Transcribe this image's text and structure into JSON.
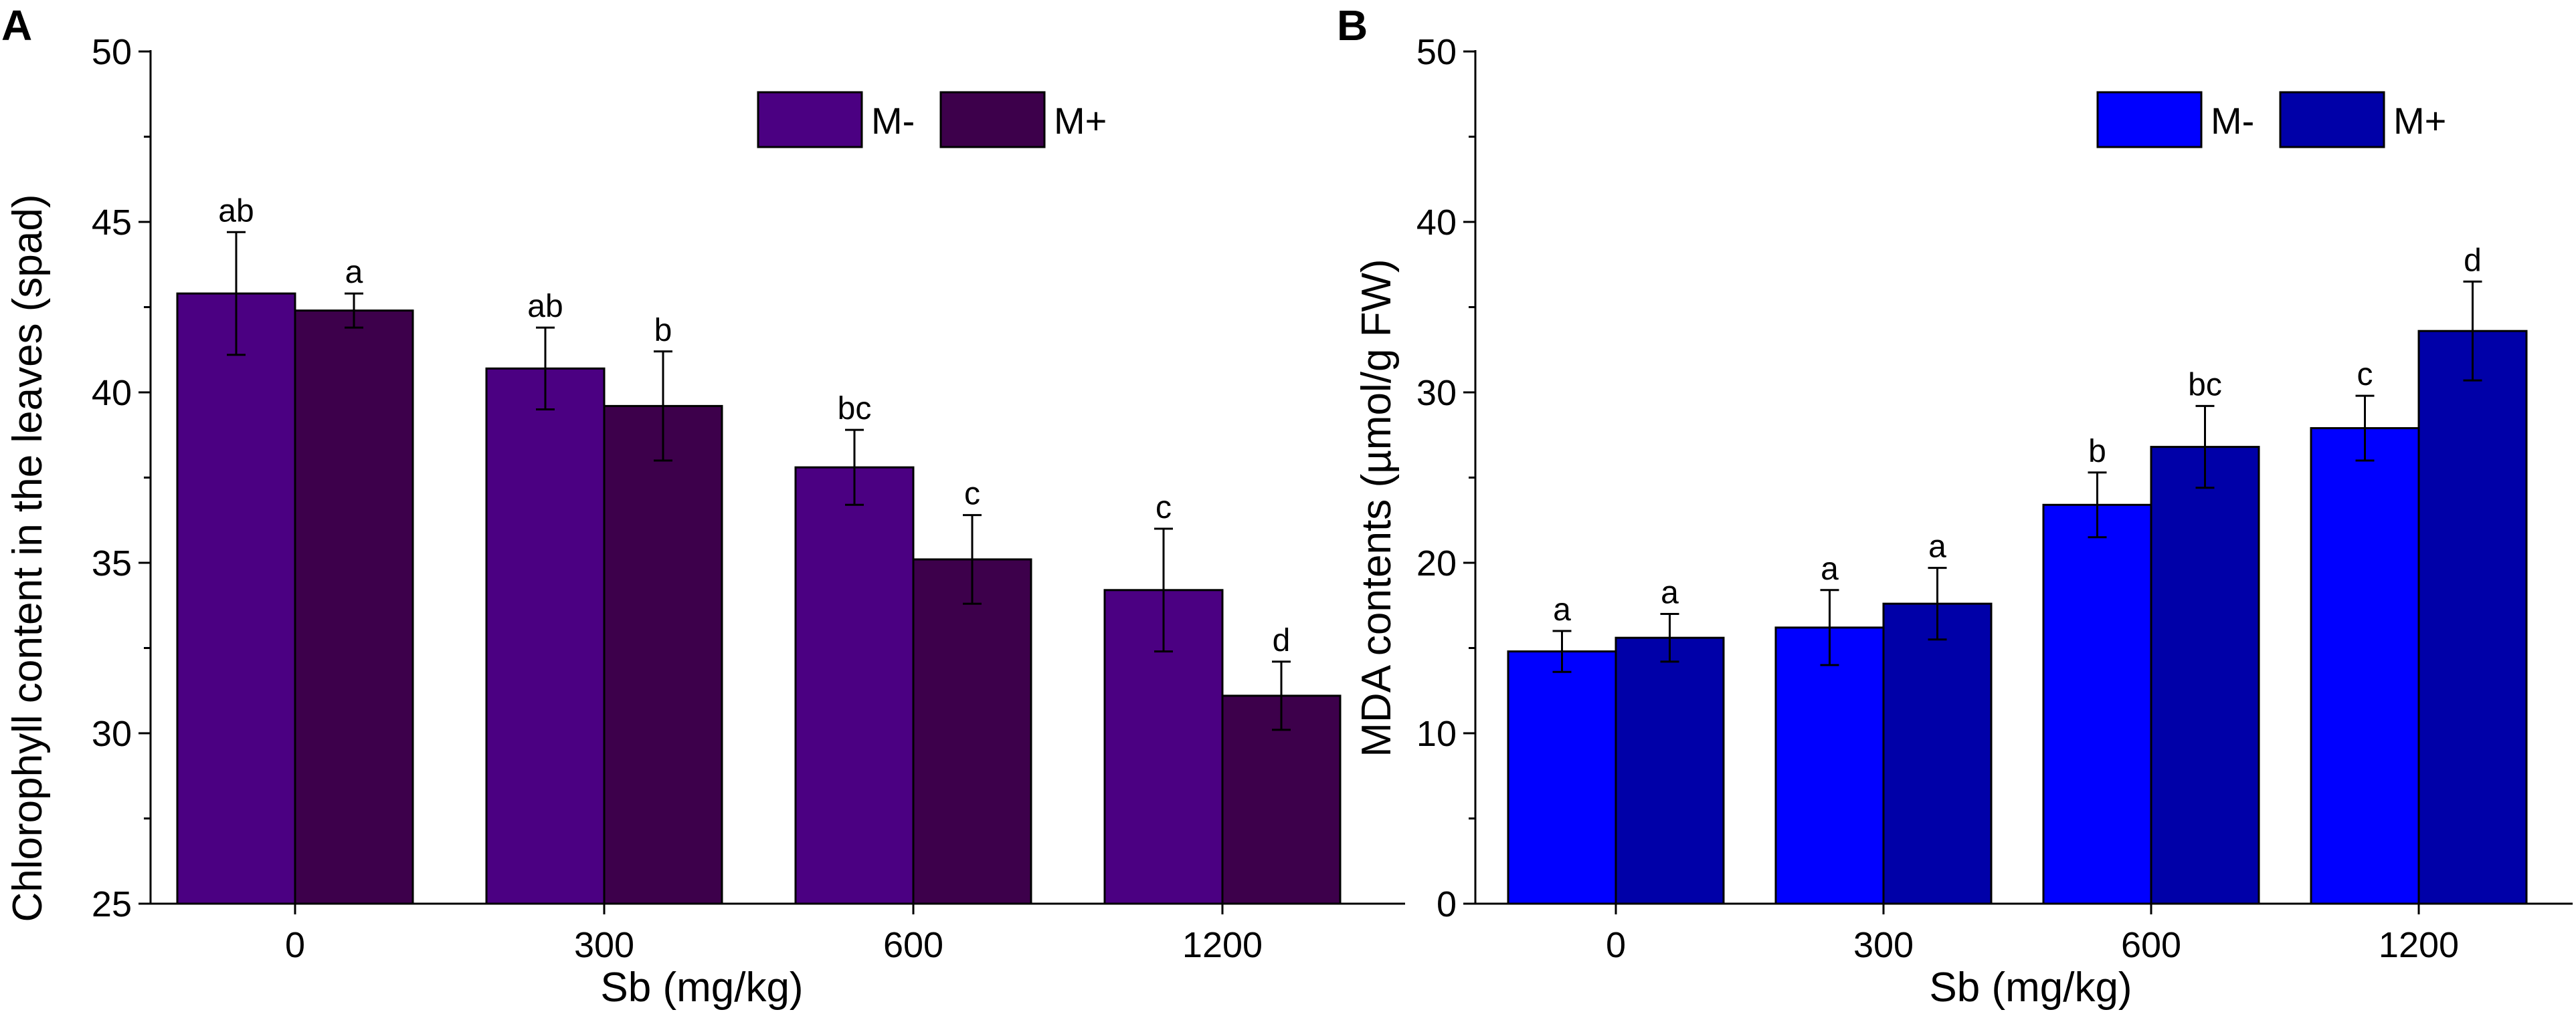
{
  "chart_data": [
    {
      "panel": "A",
      "type": "bar",
      "xlabel": "Sb  (mg/kg)",
      "ylabel": "Chlorophyll content in the leaves (spad)",
      "ylim": [
        25,
        50
      ],
      "yticks": [
        "25",
        "30",
        "35",
        "40",
        "45",
        "50"
      ],
      "categories": [
        "0",
        "300",
        "600",
        "1200"
      ],
      "legend_position": "top-right",
      "series": [
        {
          "name": "M-",
          "color": "#4b0082",
          "values": [
            42.9,
            40.7,
            37.8,
            34.2
          ],
          "errors": [
            1.8,
            1.2,
            1.1,
            1.8
          ],
          "labels": [
            "ab",
            "ab",
            "bc",
            "c"
          ]
        },
        {
          "name": "M+",
          "color": "#3d004b",
          "values": [
            42.4,
            39.6,
            35.1,
            31.1
          ],
          "errors": [
            0.5,
            1.6,
            1.3,
            1.0
          ],
          "labels": [
            "a",
            "b",
            "c",
            "d"
          ]
        }
      ]
    },
    {
      "panel": "B",
      "type": "bar",
      "xlabel": "Sb (mg/kg)",
      "ylabel": "MDA contents (µmol/g FW)",
      "ylim": [
        0,
        50
      ],
      "yticks": [
        "0",
        "10",
        "20",
        "30",
        "40",
        "50"
      ],
      "categories": [
        "0",
        "300",
        "600",
        "1200"
      ],
      "legend_position": "top-right",
      "series": [
        {
          "name": "M-",
          "color": "#0000ff",
          "values": [
            14.8,
            16.2,
            23.4,
            27.9
          ],
          "errors": [
            1.2,
            2.2,
            1.9,
            1.9
          ],
          "labels": [
            "a",
            "a",
            "b",
            "c"
          ]
        },
        {
          "name": "M+",
          "color": "#0000a8",
          "values": [
            15.6,
            17.6,
            26.8,
            33.6
          ],
          "errors": [
            1.4,
            2.1,
            2.4,
            2.9
          ],
          "labels": [
            "a",
            "a",
            "bc",
            "d"
          ]
        }
      ]
    }
  ]
}
